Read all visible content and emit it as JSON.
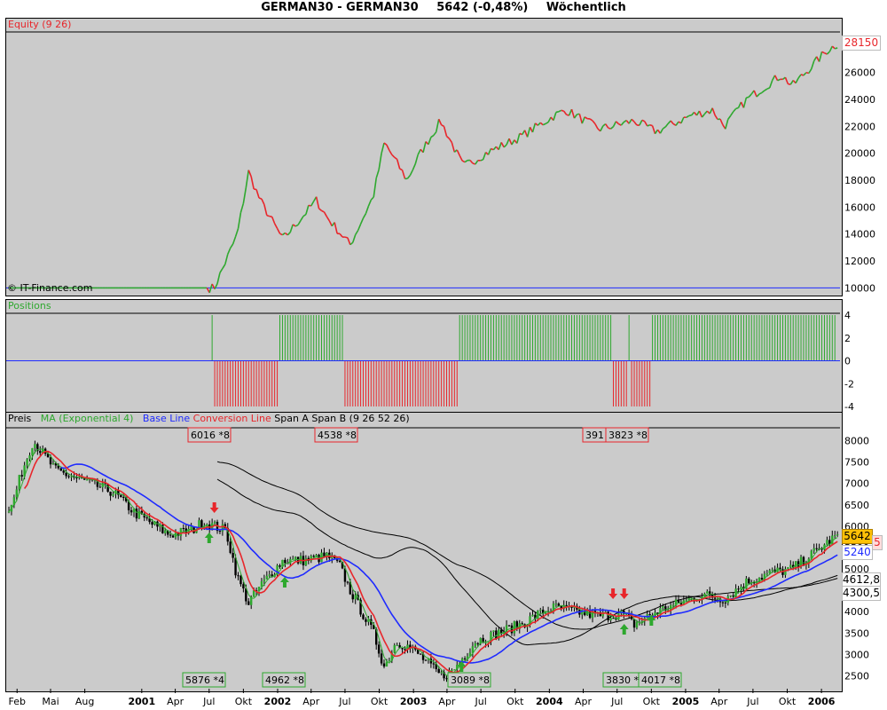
{
  "header": {
    "instrument": "GERMAN30 - GERMAN30",
    "quote": "5642 (-0,48%)",
    "interval": "Wöchentlich"
  },
  "panels": {
    "equity": {
      "label": "Equity (9 26)",
      "current_value": "28150",
      "watermark": "© IT-Finance.com"
    },
    "positions": {
      "label": "Positions"
    },
    "price": {
      "label_preis": "Preis",
      "label_ma": "MA (Exponential 4)",
      "label_base": "Base Line",
      "label_conv": "Conversion Line",
      "label_span": "Span A Span B (9 26 52 26)",
      "last_price": "5642",
      "base_value": "5240",
      "span_a_value": "4612,8",
      "span_b_value": "4300,5",
      "conv_value_partial": "5"
    }
  },
  "colors": {
    "panel_bg": "#cbcbcb",
    "up": "#2ea82e",
    "down": "#e8262b",
    "base_line": "#1f2bff",
    "conversion_line": "#e8262b",
    "span_lines": "#000000",
    "ma_line": "#2ea82e",
    "zero_line": "#1f2bff",
    "last_price_bg": "#ffc107"
  },
  "chart_data": [
    {
      "type": "line",
      "title": "Equity (9 26)",
      "x": [
        "2000-02",
        "2000-08",
        "2001-01",
        "2001-07",
        "2001-08",
        "2001-09",
        "2001-10",
        "2001-11",
        "2002-01",
        "2002-04",
        "2002-05",
        "2002-07",
        "2002-09",
        "2002-10",
        "2002-12",
        "2003-01",
        "2003-03",
        "2003-05",
        "2003-07",
        "2003-10",
        "2004-01",
        "2004-02",
        "2004-05",
        "2004-08",
        "2004-10",
        "2005-01",
        "2005-03",
        "2005-04",
        "2005-06",
        "2005-08",
        "2005-09",
        "2005-10",
        "2006-01",
        "2006-02"
      ],
      "y": [
        10000,
        10000,
        10000,
        10000,
        12000,
        14000,
        18600,
        16500,
        13600,
        16500,
        15200,
        13200,
        16800,
        20800,
        18000,
        19800,
        22400,
        19000,
        20000,
        21200,
        22800,
        23200,
        21800,
        22400,
        21600,
        22800,
        23200,
        22000,
        24000,
        25200,
        25800,
        25000,
        27600,
        28150
      ],
      "ylim": [
        9500,
        29000
      ],
      "yticks": [
        10000,
        12000,
        14000,
        16000,
        18000,
        20000,
        22000,
        24000,
        26000
      ],
      "baseline": 10000
    },
    {
      "type": "bar",
      "title": "Positions",
      "ylim": [
        -4,
        4
      ],
      "yticks": [
        4,
        2,
        0,
        -2,
        -4
      ],
      "series": [
        {
          "name": "long",
          "color": "#2ea82e",
          "intervals": [
            [
              "2001-07-09",
              "2001-07-09"
            ],
            [
              "2002-01-07",
              "2002-06-24"
            ],
            [
              "2003-05-05",
              "2004-06-14"
            ],
            [
              "2004-08-02",
              "2004-08-02"
            ],
            [
              "2004-10-04",
              "2006-02-06"
            ]
          ],
          "value": 4
        },
        {
          "name": "short",
          "color": "#e8262b",
          "intervals": [
            [
              "2001-07-16",
              "2001-12-31"
            ],
            [
              "2002-07-01",
              "2003-04-28"
            ],
            [
              "2004-06-21",
              "2004-07-26"
            ],
            [
              "2004-08-09",
              "2004-09-27"
            ]
          ],
          "value": -4
        }
      ]
    },
    {
      "type": "line",
      "title": "Preis",
      "ylim": [
        2200,
        8300
      ],
      "yticks": [
        2500,
        3000,
        3500,
        4000,
        4500,
        5000,
        5500,
        6000,
        6500,
        7000,
        7500,
        8000
      ],
      "price_path": {
        "x": [
          "2000-01",
          "2000-02",
          "2000-03",
          "2000-05",
          "2000-08",
          "2000-10",
          "2000-12",
          "2001-03",
          "2001-05",
          "2001-06",
          "2001-08",
          "2001-09",
          "2001-10",
          "2001-11",
          "2002-01",
          "2002-03",
          "2002-05",
          "2002-06",
          "2002-07",
          "2002-09",
          "2002-10",
          "2002-11",
          "2002-12",
          "2003-01",
          "2003-03",
          "2003-04",
          "2003-06",
          "2003-08",
          "2003-10",
          "2003-12",
          "2004-01",
          "2004-03",
          "2004-05",
          "2004-07",
          "2004-08",
          "2004-10",
          "2004-12",
          "2005-02",
          "2005-04",
          "2005-06",
          "2005-08",
          "2005-10",
          "2005-12",
          "2006-02"
        ],
        "y": [
          6400,
          7300,
          8000,
          7300,
          7000,
          6800,
          6300,
          5800,
          5900,
          6100,
          5900,
          4800,
          4200,
          4600,
          5200,
          5200,
          5300,
          5100,
          4500,
          3500,
          2700,
          3300,
          3200,
          3000,
          2500,
          2600,
          3300,
          3500,
          3700,
          4000,
          4100,
          4000,
          3900,
          3950,
          3700,
          4000,
          4200,
          4400,
          4300,
          4700,
          4900,
          5000,
          5400,
          5800
        ]
      },
      "x": [
        "Feb",
        "Mai",
        "Aug",
        "2001",
        "Apr",
        "Jul",
        "Okt",
        "2002",
        "Apr",
        "Jul",
        "Okt",
        "2003",
        "Apr",
        "Jul",
        "Okt",
        "2004",
        "Apr",
        "Jul",
        "Okt",
        "2005",
        "Apr",
        "Jul",
        "Okt",
        "2006"
      ],
      "annotations": [
        {
          "text": "6016",
          "suffix": "*8",
          "pos": "top"
        },
        {
          "text": "4538",
          "suffix": "*8",
          "pos": "top"
        },
        {
          "text": "391",
          "suffix": "",
          "pos": "top"
        },
        {
          "text": "3823",
          "suffix": "*8",
          "pos": "top"
        },
        {
          "text": "5876",
          "suffix": "*4",
          "pos": "bottom"
        },
        {
          "text": "4962",
          "suffix": "*8",
          "pos": "bottom"
        },
        {
          "text": "3089",
          "suffix": "*8",
          "pos": "bottom"
        },
        {
          "text": "3830",
          "suffix": "*",
          "pos": "bottom"
        },
        {
          "text": "4017",
          "suffix": "*8",
          "pos": "bottom"
        }
      ]
    }
  ]
}
